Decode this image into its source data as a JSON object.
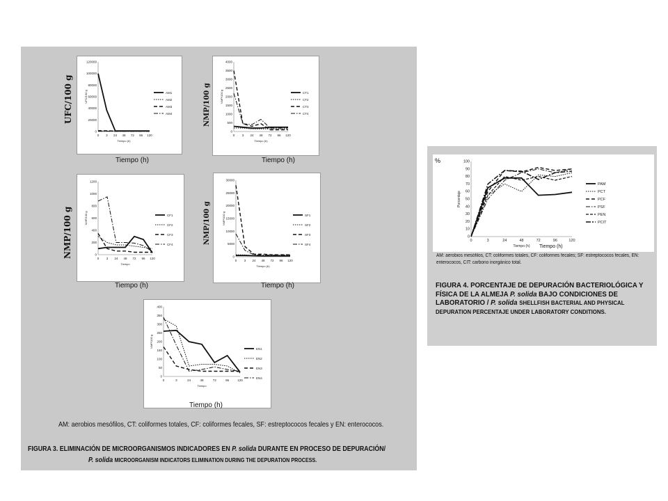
{
  "figure3": {
    "caption_es_1": "FIGURA 3. ELIMINACIÓN DE MICROORGANISMOS INDICADORES EN",
    "caption_species": "P. solida",
    "caption_es_2": "DURANTE EN PROCESO DE DEPURACIÓN/",
    "caption_species_2": "P. solida",
    "caption_en": "MICROORGANISM INDICATORS ELIMINATION DURING THE DEPURATION PROCESS.",
    "abbreviations": "AM: aerobios mesófilos, CT: coliformes totales, CF: coliformes fecales, SF: estreptococos fecales y EN: enterococos.",
    "overlay_labels": {
      "am_ylabel": "UFC/100 g",
      "ct_ylabel": "NMP/100 g",
      "cf_ylabel": "NMP/100 g",
      "sf_ylabel": "NMP/100 g",
      "xlabel": "Tiempo (h)"
    }
  },
  "figure4": {
    "caption_es": "FIGURA 4. PORCENTAJE DE DEPURACIÓN BACTERIOLÓGICA Y FÍSICA DE LA ALMEJA",
    "caption_species": "P. solida",
    "caption_es_2": "BAJO CONDICIONES DE LABORATORIO /",
    "caption_species_2": "P. solida",
    "caption_en": "SHELLFISH BACTERIAL AND PHYSICAL DEPURATION PERCENTAJE UNDER LABORATORY CONDITIONS.",
    "abbreviations": "AM: aerobios mesófilos, CT: coliformes totales, CF: coliformes fecales; SF: estreptococos fecales, EN: enterococos, CIT: carbono inorgánico total.",
    "overlay_ylabel": "%",
    "overlay_xlabel": "Tiempo (h)"
  },
  "chart_data": [
    {
      "id": "AM",
      "type": "line",
      "ylabel": "UFC/100 g",
      "xlabel": "Tiempo (h)",
      "x": [
        0,
        3,
        24,
        48,
        72,
        96,
        120
      ],
      "xticks": [
        "0",
        "3",
        "24",
        "48",
        "72",
        "96",
        "120"
      ],
      "ylim": [
        0,
        120000
      ],
      "yticks": [
        0,
        20000,
        40000,
        60000,
        80000,
        100000,
        120000
      ],
      "series": [
        {
          "name": "AM1",
          "values": [
            100000,
            37000,
            1000,
            1000,
            1000,
            1000,
            1000
          ]
        },
        {
          "name": "AM2",
          "values": [
            1000,
            1000,
            1000,
            900,
            900,
            900,
            900
          ]
        },
        {
          "name": "AM3",
          "values": [
            1500,
            1200,
            1000,
            1000,
            1000,
            1000,
            1000
          ]
        },
        {
          "name": "AM4",
          "values": [
            500,
            500,
            400,
            400,
            400,
            400,
            400
          ]
        }
      ]
    },
    {
      "id": "CT",
      "type": "line",
      "ylabel": "NMP/100 g",
      "xlabel": "Tiempo (h)",
      "x": [
        0,
        3,
        24,
        48,
        72,
        96,
        120
      ],
      "xticks": [
        "0",
        "3",
        "24",
        "48",
        "72",
        "96",
        "120"
      ],
      "ylim": [
        0,
        4000
      ],
      "yticks": [
        0,
        500,
        1000,
        1500,
        2000,
        2500,
        3000,
        3500,
        4000
      ],
      "series": [
        {
          "name": "CT1",
          "values": [
            300,
            250,
            200,
            200,
            250,
            250,
            250
          ]
        },
        {
          "name": "CT2",
          "values": [
            200,
            200,
            150,
            150,
            150,
            150,
            150
          ]
        },
        {
          "name": "CT3",
          "values": [
            3500,
            450,
            300,
            450,
            100,
            100,
            100
          ]
        },
        {
          "name": "CT4",
          "values": [
            2200,
            450,
            400,
            700,
            200,
            200,
            200
          ]
        }
      ]
    },
    {
      "id": "CF",
      "type": "line",
      "ylabel": "NMP/100 g",
      "xlabel": "Tiempo",
      "x": [
        0,
        3,
        24,
        48,
        72,
        96,
        120
      ],
      "xticks": [
        "0",
        "3",
        "24",
        "48",
        "72",
        "96",
        "120"
      ],
      "ylim": [
        0,
        1200
      ],
      "yticks": [
        0,
        200,
        400,
        600,
        800,
        1000,
        1200
      ],
      "series": [
        {
          "name": "CF1",
          "values": [
            100,
            120,
            120,
            120,
            300,
            250,
            30
          ]
        },
        {
          "name": "CF2",
          "values": [
            300,
            200,
            160,
            160,
            140,
            120,
            100
          ]
        },
        {
          "name": "CF3",
          "values": [
            350,
            100,
            60,
            60,
            40,
            40,
            40
          ]
        },
        {
          "name": "CF4",
          "values": [
            880,
            950,
            200,
            200,
            190,
            150,
            50
          ]
        }
      ]
    },
    {
      "id": "SF",
      "type": "line",
      "ylabel": "NMP/100 g",
      "xlabel": "Tiempo (h)",
      "x": [
        0,
        3,
        24,
        48,
        72,
        96,
        120
      ],
      "xticks": [
        "0",
        "3",
        "24",
        "48",
        "72",
        "96",
        "120"
      ],
      "ylim": [
        0,
        30000
      ],
      "yticks": [
        0,
        5000,
        10000,
        15000,
        20000,
        25000,
        30000
      ],
      "series": [
        {
          "name": "SF1",
          "values": [
            500,
            500,
            400,
            300,
            300,
            300,
            300
          ]
        },
        {
          "name": "SF2",
          "values": [
            800,
            700,
            500,
            400,
            400,
            400,
            400
          ]
        },
        {
          "name": "SF3",
          "values": [
            28000,
            4000,
            1000,
            1000,
            800,
            800,
            800
          ]
        },
        {
          "name": "SF4",
          "values": [
            9000,
            2500,
            800,
            700,
            700,
            700,
            700
          ]
        }
      ]
    },
    {
      "id": "EN",
      "type": "line",
      "ylabel": "NMP/100 g",
      "xlabel": "Tiempo",
      "x": [
        0,
        3,
        24,
        48,
        72,
        96,
        120
      ],
      "xticks": [
        "0",
        "3",
        "24",
        "48",
        "72",
        "96",
        "120"
      ],
      "ylim": [
        0,
        400
      ],
      "yticks": [
        0,
        50,
        100,
        150,
        200,
        250,
        300,
        350,
        400
      ],
      "series": [
        {
          "name": "EN1",
          "values": [
            260,
            265,
            200,
            185,
            80,
            120,
            25
          ]
        },
        {
          "name": "EN2",
          "values": [
            330,
            290,
            60,
            70,
            70,
            60,
            20
          ]
        },
        {
          "name": "EN3",
          "values": [
            170,
            60,
            40,
            30,
            30,
            30,
            30
          ]
        },
        {
          "name": "EN4",
          "values": [
            340,
            180,
            30,
            40,
            55,
            40,
            30
          ]
        }
      ]
    },
    {
      "id": "PCT",
      "type": "line",
      "ylabel": "Porcentaje",
      "xlabel": "Tiempo (h)",
      "x": [
        0,
        3,
        24,
        48,
        72,
        96,
        120
      ],
      "xticks": [
        "0",
        "3",
        "24",
        "48",
        "72",
        "96",
        "120"
      ],
      "ylim": [
        0,
        100
      ],
      "yticks": [
        0,
        10,
        20,
        30,
        40,
        50,
        60,
        70,
        80,
        90,
        100
      ],
      "series": [
        {
          "name": "PAM",
          "values": [
            0,
            65,
            78,
            78,
            55,
            56,
            59
          ]
        },
        {
          "name": "PCT",
          "values": [
            0,
            55,
            70,
            60,
            82,
            80,
            85
          ]
        },
        {
          "name": "PCF",
          "values": [
            0,
            60,
            88,
            86,
            92,
            88,
            90
          ]
        },
        {
          "name": "PSF",
          "values": [
            0,
            50,
            75,
            85,
            90,
            85,
            90
          ]
        },
        {
          "name": "PEN",
          "values": [
            0,
            55,
            80,
            75,
            80,
            75,
            80
          ]
        },
        {
          "name": "PCIT",
          "values": [
            0,
            70,
            88,
            87,
            76,
            85,
            87
          ]
        }
      ]
    }
  ]
}
